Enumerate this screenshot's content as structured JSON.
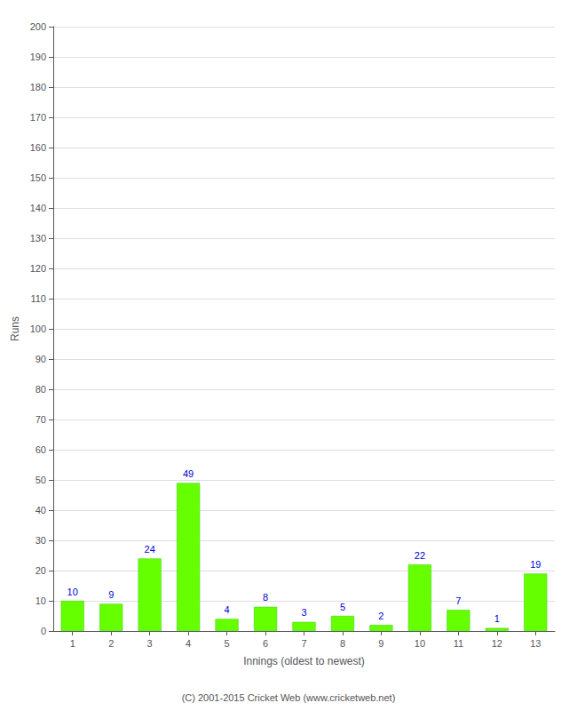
{
  "chart_data": {
    "type": "bar",
    "xlabel": "Innings (oldest to newest)",
    "ylabel": "Runs",
    "categories": [
      "1",
      "2",
      "3",
      "4",
      "5",
      "6",
      "7",
      "8",
      "9",
      "10",
      "11",
      "12",
      "13"
    ],
    "values": [
      10,
      9,
      24,
      49,
      4,
      8,
      3,
      5,
      2,
      22,
      7,
      1,
      19
    ],
    "color": "#66ff00",
    "ylim": [
      0,
      200
    ],
    "yticks": [
      0,
      10,
      20,
      30,
      40,
      50,
      60,
      70,
      80,
      90,
      100,
      110,
      120,
      130,
      140,
      150,
      160,
      170,
      180,
      190,
      200
    ],
    "grid": true,
    "data_labels": true,
    "annotations": [
      "(C) 2001-2015 Cricket Web (www.cricketweb.net)"
    ]
  }
}
